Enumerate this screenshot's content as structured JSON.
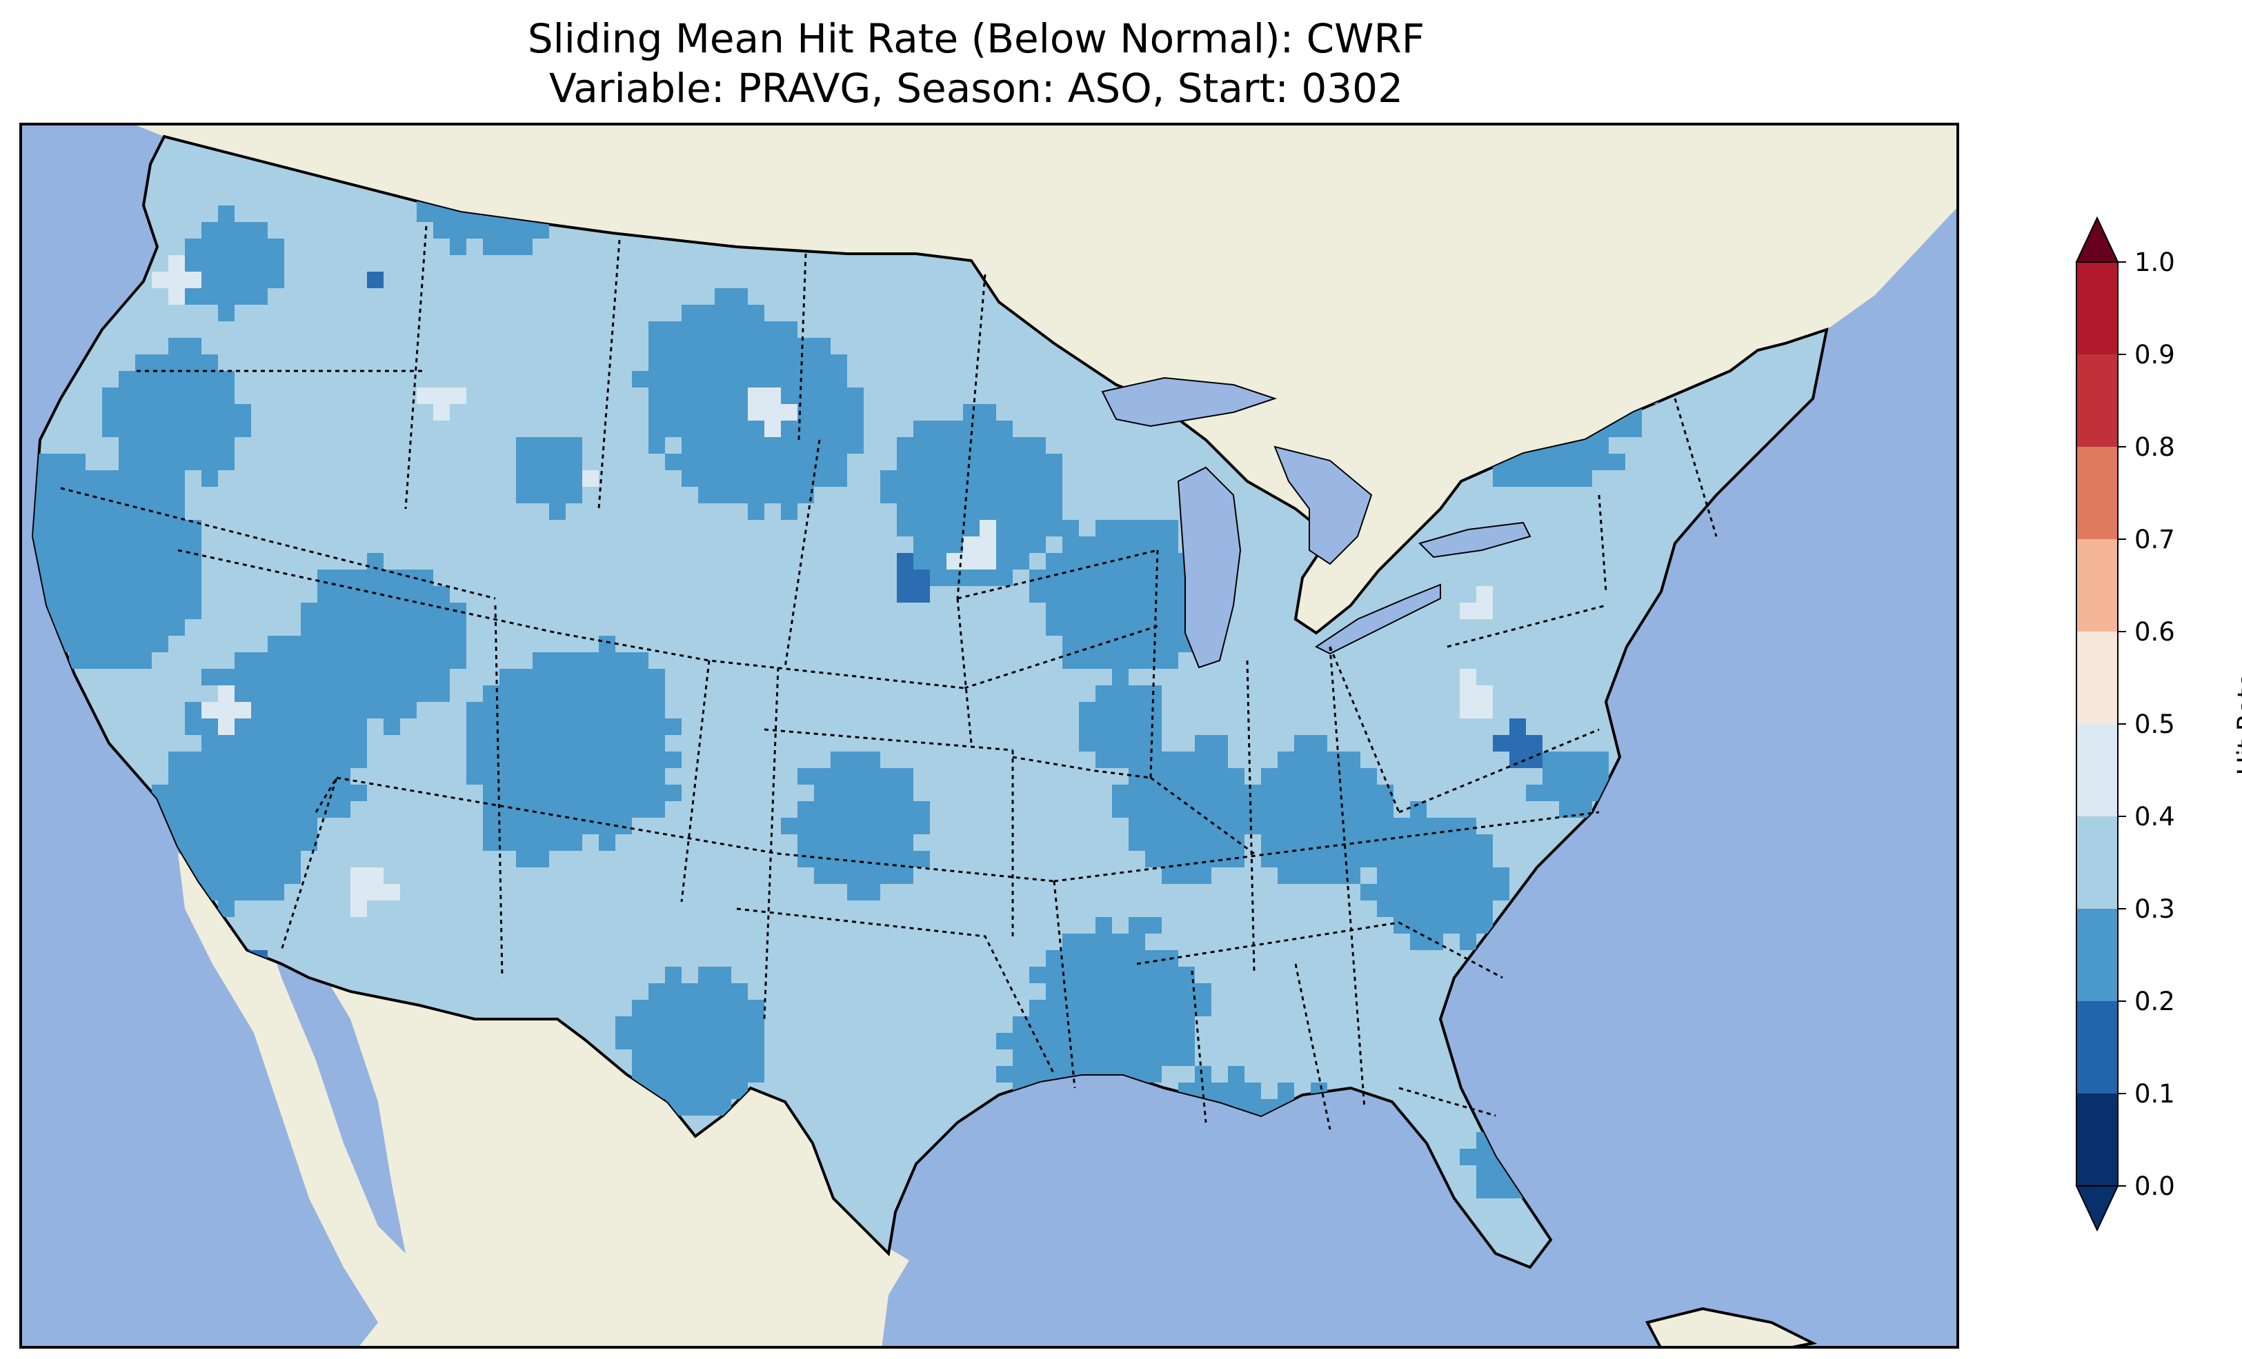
{
  "figure": {
    "title_line1": "Sliding Mean Hit Rate (Below Normal): CWRF",
    "title_line2": "Variable: PRAVG, Season: ASO, Start: 0302"
  },
  "colors": {
    "ocean": "#95b3e0",
    "land": "#efeddc",
    "lake": "#9ab6e3",
    "bins": [
      "#053061",
      "#2166ac",
      "#4393c3",
      "#92c5de",
      "#d1e5f0",
      "#f7f7f7",
      "#fddbc7",
      "#f4a582",
      "#d6604d",
      "#b2182b",
      "#67001f"
    ]
  },
  "colorbar": {
    "label": "Hit Rate",
    "ticks": [
      "0.0",
      "0.1",
      "0.2",
      "0.3",
      "0.4",
      "0.5",
      "0.6",
      "0.7",
      "0.8",
      "0.9",
      "1.0"
    ],
    "bin_colors": [
      "#08306b",
      "#2166ac",
      "#4b98ca",
      "#a9cfe4",
      "#dce9f2",
      "#f7e6dc",
      "#f4b697",
      "#e07a5f",
      "#c03139",
      "#b2182b",
      "#67001f"
    ]
  },
  "map": {
    "projection": "Lambert Conformal, contiguous United States",
    "variable": "PRAVG",
    "season": "ASO",
    "start": "0302",
    "model": "CWRF",
    "dominant_hit_rate_range": [
      0.2,
      0.4
    ],
    "field_classes": {
      "low": {
        "range": "0.1-0.2",
        "color": "#2a6db0"
      },
      "mid": {
        "range": "0.2-0.3",
        "color": "#4b98ca"
      },
      "high": {
        "range": "0.3-0.4",
        "color": "#a9cfe4"
      },
      "very_high": {
        "range": "0.4-0.5",
        "color": "#dce9f2"
      }
    }
  }
}
